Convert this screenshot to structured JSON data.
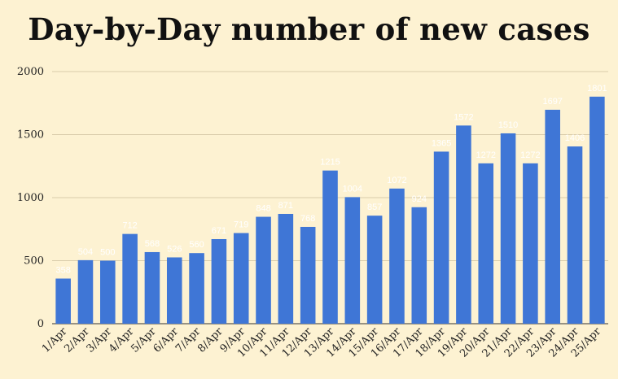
{
  "chart_data": {
    "type": "bar",
    "title": "Day-by-Day number of new cases",
    "categories": [
      "1/Apr",
      "2/Apr",
      "3/Apr",
      "4/Apr",
      "5/Apr",
      "6/Apr",
      "7/Apr",
      "8/Apr",
      "9/Apr",
      "10/Apr",
      "11/Apr",
      "12/Apr",
      "13/Apr",
      "14/Apr",
      "15/Apr",
      "16/Apr",
      "17/Apr",
      "18/Apr",
      "19/Apr",
      "20/Apr",
      "21/Apr",
      "22/Apr",
      "23/Apr",
      "24/Apr",
      "25/Apr"
    ],
    "values": [
      358,
      504,
      500,
      712,
      568,
      526,
      560,
      671,
      719,
      848,
      871,
      768,
      1215,
      1004,
      857,
      1072,
      924,
      1365,
      1572,
      1272,
      1510,
      1272,
      1697,
      1406,
      1801
    ],
    "ylim": [
      0,
      2000
    ],
    "yticks": [
      0,
      500,
      1000,
      1500,
      2000
    ],
    "grid": true,
    "colors": {
      "bar": "#3f76d6",
      "grid": "#d9ccab",
      "background": "#fdf2d2",
      "label": "#ffffff"
    }
  }
}
